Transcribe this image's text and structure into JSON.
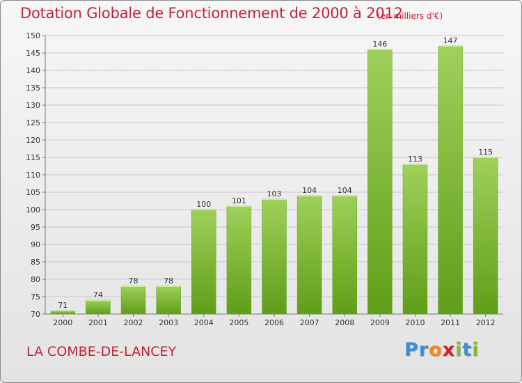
{
  "title": "Dotation Globale de Fonctionnement de 2000 à 2012",
  "subtitle": "(en milliers d'€)",
  "commune": "LA COMBE-DE-LANCEY",
  "brand": {
    "text": "Proxiti",
    "letters": [
      {
        "char": "P",
        "color": "#3a8fd6"
      },
      {
        "char": "r",
        "color": "#3a8fd6"
      },
      {
        "char": "o",
        "color": "#f08a1c"
      },
      {
        "char": "x",
        "color": "#d81e2a"
      },
      {
        "char": "i",
        "color": "#7cbf2a"
      },
      {
        "char": "t",
        "color": "#3a8fd6"
      },
      {
        "char": "i",
        "color": "#7cbf2a"
      }
    ]
  },
  "colors": {
    "title": "#c0233a",
    "bar_top": "#9fd05a",
    "bar_bottom": "#5f9e18",
    "grid": "#c8c8c8",
    "frame_border": "#8a8a8a"
  },
  "chart_data": {
    "type": "bar",
    "categories": [
      "2000",
      "2001",
      "2002",
      "2003",
      "2004",
      "2005",
      "2006",
      "2007",
      "2008",
      "2009",
      "2010",
      "2011",
      "2012"
    ],
    "values": [
      71,
      74,
      78,
      78,
      100,
      101,
      103,
      104,
      104,
      146,
      113,
      147,
      115
    ],
    "ylim": [
      70,
      150
    ],
    "ytick_step": 5,
    "grid": true,
    "legend": "none"
  }
}
